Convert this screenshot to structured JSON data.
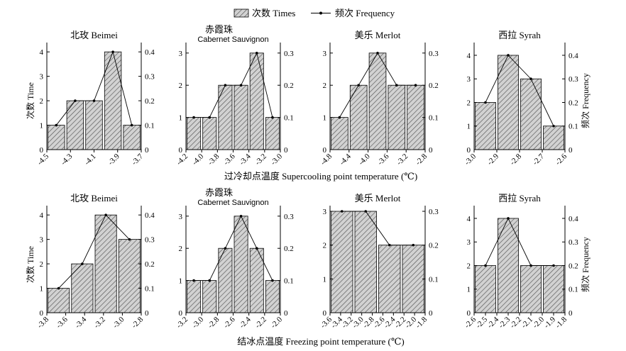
{
  "legend": {
    "bar_label": "次数 Times",
    "line_label": "频次 Frequency"
  },
  "colors": {
    "bar_fill": "#d2d2d2",
    "hatch": "#555555",
    "axis": "#000000"
  },
  "rows": [
    {
      "xaxis_title": "过冷却点温度 Supercooling point temperature (℃)"
    },
    {
      "xaxis_title": "结冰点温度 Freezing point temperature (℃)"
    }
  ],
  "left_ylabel": "次数 Time",
  "right_ylabel": "频次 Frequency",
  "chart_data": [
    {
      "type": "bar",
      "row": 0,
      "col": 0,
      "title": "北玫 Beimei",
      "title2": "",
      "xticks": [
        "-4.5",
        "-4.3",
        "-4.1",
        "-3.9",
        "-3.7"
      ],
      "x_range": [
        -4.6,
        -3.6
      ],
      "bins": [
        [
          -4.6,
          -4.4
        ],
        [
          -4.4,
          -4.2
        ],
        [
          -4.2,
          -4.0
        ],
        [
          -4.0,
          -3.8
        ],
        [
          -3.8,
          -3.6
        ]
      ],
      "times": [
        1,
        2,
        2,
        4,
        1
      ],
      "frequency": [
        0.1,
        0.2,
        0.2,
        0.4,
        0.1
      ],
      "left_ticks": [
        0,
        1,
        2,
        3,
        4
      ],
      "left_max": 4.15,
      "right_ticks": [
        "0",
        "0.1",
        "0.2",
        "0.3",
        "0.4"
      ],
      "right_max": 0.415
    },
    {
      "type": "bar",
      "row": 0,
      "col": 1,
      "title": "赤霞珠",
      "title2": "Cabernet Sauvignon",
      "xticks": [
        "-4.2",
        "-4.0",
        "-3.8",
        "-3.6",
        "-3.4",
        "-3.2",
        "-3.0"
      ],
      "x_range": [
        -4.2,
        -3.0
      ],
      "bins": [
        [
          -4.2,
          -4.0
        ],
        [
          -4.0,
          -3.8
        ],
        [
          -3.8,
          -3.6
        ],
        [
          -3.6,
          -3.4
        ],
        [
          -3.4,
          -3.2
        ],
        [
          -3.2,
          -3.0
        ]
      ],
      "times": [
        1,
        1,
        2,
        2,
        3,
        1
      ],
      "frequency": [
        0.1,
        0.1,
        0.2,
        0.2,
        0.3,
        0.1
      ],
      "left_ticks": [
        0,
        1,
        2,
        3
      ],
      "left_max": 3.15,
      "right_ticks": [
        "0",
        "0.1",
        "0.2",
        "0.3"
      ],
      "right_max": 0.315
    },
    {
      "type": "bar",
      "row": 0,
      "col": 2,
      "title": "美乐 Merlot",
      "title2": "",
      "xticks": [
        "-4.8",
        "-4.4",
        "-4.0",
        "-3.6",
        "-3.2",
        "-2.8"
      ],
      "x_range": [
        -4.8,
        -2.8
      ],
      "bins": [
        [
          -4.8,
          -4.4
        ],
        [
          -4.4,
          -4.0
        ],
        [
          -4.0,
          -3.6
        ],
        [
          -3.6,
          -3.2
        ],
        [
          -3.2,
          -2.8
        ]
      ],
      "times": [
        1,
        2,
        3,
        2,
        2
      ],
      "frequency": [
        0.1,
        0.2,
        0.3,
        0.2,
        0.2
      ],
      "left_ticks": [
        0,
        1,
        2,
        3
      ],
      "left_max": 3.15,
      "right_ticks": [
        "0",
        "0.1",
        "0.2",
        "0.3"
      ],
      "right_max": 0.315
    },
    {
      "type": "bar",
      "row": 0,
      "col": 3,
      "title": "西拉 Syrah",
      "title2": "",
      "xticks": [
        "-3.0",
        "-2.9",
        "-2.8",
        "-2.7",
        "-2.6"
      ],
      "x_range": [
        -3.0,
        -2.6
      ],
      "bins": [
        [
          -3.0,
          -2.9
        ],
        [
          -2.9,
          -2.8
        ],
        [
          -2.8,
          -2.7
        ],
        [
          -2.7,
          -2.6
        ]
      ],
      "times": [
        2,
        4,
        3,
        1
      ],
      "frequency": [
        0.2,
        0.4,
        0.3,
        0.1
      ],
      "left_ticks": [
        0,
        1,
        2,
        3,
        4
      ],
      "left_max": 4.3,
      "right_ticks": [
        "0",
        "0.1",
        "0.2",
        "0.3",
        "0.4"
      ],
      "right_max": 0.43
    },
    {
      "type": "bar",
      "row": 1,
      "col": 0,
      "title": "北玫 Beimei",
      "title2": "",
      "xticks": [
        "-3.8",
        "-3.6",
        "-3.4",
        "-3.2",
        "-3.0",
        "-2.8"
      ],
      "x_range": [
        -3.8,
        -2.6
      ],
      "bins": [
        [
          -3.8,
          -3.5
        ],
        [
          -3.5,
          -3.2
        ],
        [
          -3.2,
          -2.9
        ],
        [
          -2.9,
          -2.6
        ]
      ],
      "times": [
        1,
        2,
        4,
        3
      ],
      "frequency": [
        0.1,
        0.2,
        0.4,
        0.3
      ],
      "left_ticks": [
        0,
        1,
        2,
        3,
        4
      ],
      "left_max": 4.15,
      "right_ticks": [
        "0",
        "0.1",
        "0.2",
        "0.3",
        "0.4"
      ],
      "right_max": 0.415
    },
    {
      "type": "bar",
      "row": 1,
      "col": 1,
      "title": "赤霞珠",
      "title2": "Cabernet Sauvignon",
      "xticks": [
        "-3.2",
        "-3.0",
        "-2.8",
        "-2.6",
        "-2.4",
        "-2.2",
        "-2.0"
      ],
      "x_range": [
        -3.2,
        -2.0
      ],
      "bins": [
        [
          -3.2,
          -3.0
        ],
        [
          -3.0,
          -2.8
        ],
        [
          -2.8,
          -2.6
        ],
        [
          -2.6,
          -2.4
        ],
        [
          -2.4,
          -2.2
        ],
        [
          -2.2,
          -2.0
        ]
      ],
      "times": [
        1,
        1,
        2,
        3,
        2,
        1
      ],
      "frequency": [
        0.1,
        0.1,
        0.2,
        0.3,
        0.2,
        0.1
      ],
      "left_ticks": [
        0,
        1,
        2,
        3
      ],
      "left_max": 3.15,
      "right_ticks": [
        "0",
        "0.1",
        "0.2",
        "0.3"
      ],
      "right_max": 0.315
    },
    {
      "type": "bar",
      "row": 1,
      "col": 2,
      "title": "美乐 Merlot",
      "title2": "",
      "xticks": [
        "-3.6",
        "-3.4",
        "-3.2",
        "-3.0",
        "-2.8",
        "-2.6",
        "-2.4",
        "-2.2",
        "-2.0",
        "-1.8"
      ],
      "x_range": [
        -3.6,
        -1.8
      ],
      "bins": [
        [
          -3.6,
          -3.15
        ],
        [
          -3.15,
          -2.7
        ],
        [
          -2.7,
          -2.25
        ],
        [
          -2.25,
          -1.8
        ]
      ],
      "times": [
        3,
        3,
        2,
        2
      ],
      "frequency": [
        0.3,
        0.3,
        0.2,
        0.2
      ],
      "left_ticks": [
        0,
        1,
        2,
        3
      ],
      "left_max": 3.0,
      "right_ticks": [
        "0",
        "0.1",
        "0.2",
        "0.3"
      ],
      "right_max": 0.3
    },
    {
      "type": "bar",
      "row": 1,
      "col": 3,
      "title": "西拉 Syrah",
      "title2": "",
      "xticks": [
        "-2.6",
        "-2.5",
        "-2.4",
        "-2.3",
        "-2.2",
        "-2.1",
        "-2.0",
        "-1.9",
        "-1.8"
      ],
      "x_range": [
        -2.6,
        -1.8
      ],
      "bins": [
        [
          -2.6,
          -2.4
        ],
        [
          -2.4,
          -2.2
        ],
        [
          -2.2,
          -2.0
        ],
        [
          -2.0,
          -1.8
        ]
      ],
      "times": [
        2,
        4,
        2,
        2
      ],
      "frequency": [
        0.2,
        0.4,
        0.2,
        0.2
      ],
      "left_ticks": [
        0,
        1,
        2,
        3,
        4
      ],
      "left_max": 4.3,
      "right_ticks": [
        "0",
        "0.1",
        "0.2",
        "0.3",
        "0.4"
      ],
      "right_max": 0.43
    }
  ]
}
